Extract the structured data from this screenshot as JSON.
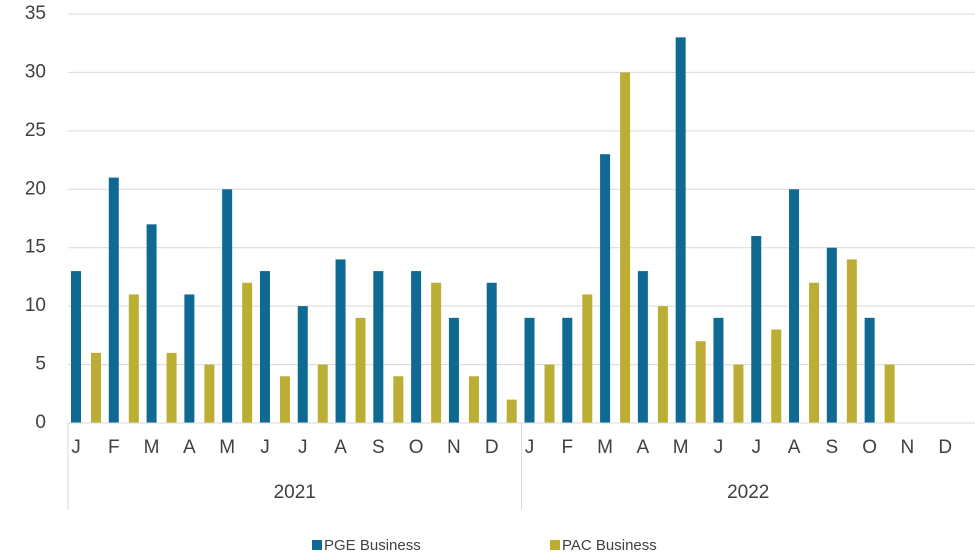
{
  "chart_data": {
    "type": "bar",
    "categories": [
      "J",
      "F",
      "M",
      "A",
      "M",
      "J",
      "J",
      "A",
      "S",
      "O",
      "N",
      "D",
      "J",
      "F",
      "M",
      "A",
      "M",
      "J",
      "J",
      "A",
      "S",
      "O",
      "N",
      "D"
    ],
    "year_labels": [
      "2021",
      "2022"
    ],
    "series": [
      {
        "name": "PGE Business",
        "color": "#0f6a93",
        "values": [
          13,
          21,
          17,
          11,
          20,
          13,
          10,
          14,
          13,
          13,
          9,
          12,
          9,
          9,
          23,
          13,
          33,
          9,
          16,
          20,
          15,
          9,
          null,
          null
        ]
      },
      {
        "name": "PAC Business",
        "color": "#bcae34",
        "values": [
          6,
          11,
          6,
          5,
          12,
          4,
          5,
          9,
          4,
          12,
          4,
          2,
          5,
          11,
          30,
          10,
          7,
          5,
          8,
          12,
          14,
          5,
          null,
          null
        ]
      }
    ],
    "ylim": [
      0,
      35
    ],
    "yticks": [
      0,
      5,
      10,
      15,
      20,
      25,
      30,
      35
    ],
    "grid": true,
    "legend": "bottom"
  }
}
